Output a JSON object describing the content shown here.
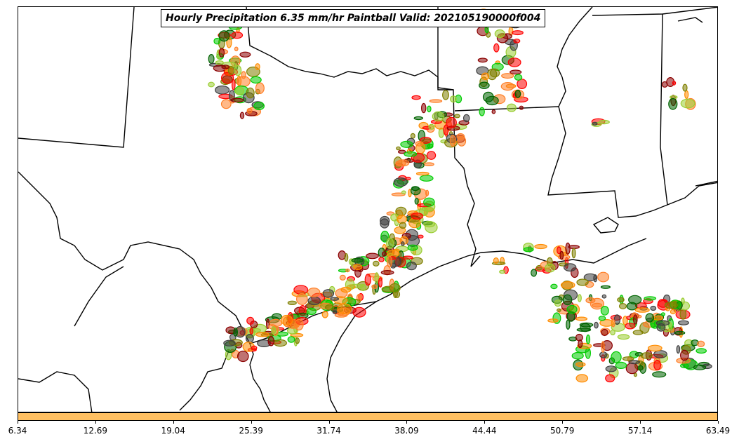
{
  "title": "Hourly Precipitation 6.35 mm/hr Paintball Valid: 202105190000f004",
  "colorbar": {
    "fill_color": "#ffc062",
    "ticks": [
      "6.34",
      "12.69",
      "19.04",
      "25.39",
      "31.74",
      "38.09",
      "44.44",
      "50.79",
      "57.14",
      "63.49"
    ]
  },
  "paintball_colors": [
    "#ff8c00",
    "#ff0000",
    "#8b0000",
    "#00cc00",
    "#006400",
    "#808000",
    "#9acd32",
    "#404040",
    "#ff7f27"
  ]
}
